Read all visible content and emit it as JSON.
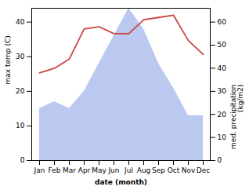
{
  "chart_data": {
    "type": "area",
    "categories": [
      "Jan",
      "Feb",
      "Mar",
      "Apr",
      "May",
      "Jun",
      "Jul",
      "Aug",
      "Sep",
      "Oct",
      "Nov",
      "Dec"
    ],
    "xlabel": "date (month)",
    "ylabel": "max temp (C)",
    "y2label": "med. precipitation\n(kg/m2)",
    "ylim": [
      0,
      44
    ],
    "yticks": [
      0,
      10,
      20,
      30,
      40
    ],
    "y2lim": [
      0,
      66
    ],
    "y2ticks": [
      0,
      10,
      20,
      30,
      40,
      50,
      60
    ],
    "series": [
      {
        "type": "area",
        "color": "#bbc8f0",
        "values": [
          15,
          17,
          15,
          20,
          28,
          36,
          44,
          38,
          28,
          21,
          13,
          13
        ]
      },
      {
        "type": "line",
        "axis": "y2",
        "color": "#cc4444",
        "values": [
          38,
          40,
          44,
          57,
          58,
          55,
          55,
          61,
          62,
          63,
          52,
          46
        ]
      }
    ]
  }
}
